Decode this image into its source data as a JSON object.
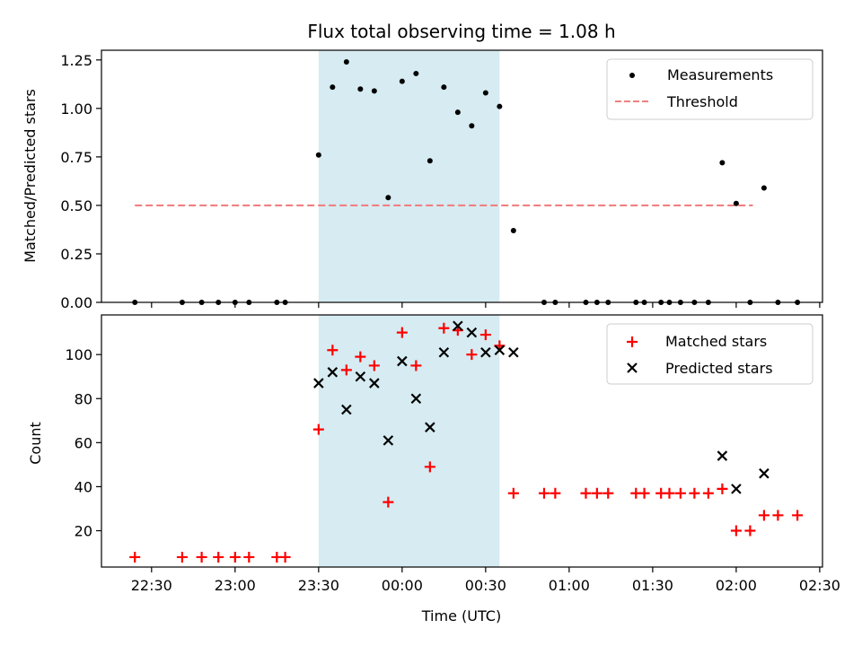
{
  "chart_data": {
    "title": "Flux total observing time = 1.08 h",
    "xlabel": "Time (UTC)",
    "x_tick_labels": [
      "22:30",
      "23:00",
      "23:30",
      "00:00",
      "00:30",
      "01:00",
      "01:30",
      "02:00",
      "02:30"
    ],
    "x_tick_minutes": [
      1350,
      1380,
      1410,
      1440,
      1470,
      1500,
      1530,
      1560,
      1590
    ],
    "xlim_minutes": [
      1332,
      1591
    ],
    "shaded_span_minutes": [
      1410,
      1475
    ],
    "colors": {
      "shade": "#add8e6",
      "threshold": "#f08080",
      "matched": "#ff0000",
      "measure": "#000000",
      "predicted": "#000000"
    },
    "panels": [
      {
        "type": "scatter",
        "ylabel": "Matched/Predicted stars",
        "ylim": [
          0,
          1.3
        ],
        "y_ticks": [
          0.0,
          0.25,
          0.5,
          0.75,
          1.0,
          1.25
        ],
        "y_tick_labels": [
          "0.00",
          "0.25",
          "0.50",
          "0.75",
          "1.00",
          "1.25"
        ],
        "legend": {
          "placement": "top-right",
          "entries": [
            "Measurements",
            "Threshold"
          ]
        },
        "threshold": {
          "name": "Threshold",
          "value": 0.5,
          "x_range_minutes": [
            1344,
            1566
          ]
        },
        "series": [
          {
            "name": "Measurements",
            "marker": "dot",
            "points": [
              [
                1344,
                0.0
              ],
              [
                1361,
                0.0
              ],
              [
                1368,
                0.0
              ],
              [
                1374,
                0.0
              ],
              [
                1380,
                0.0
              ],
              [
                1385,
                0.0
              ],
              [
                1395,
                0.0
              ],
              [
                1398,
                0.0
              ],
              [
                1410,
                0.76
              ],
              [
                1415,
                1.11
              ],
              [
                1420,
                1.24
              ],
              [
                1425,
                1.1
              ],
              [
                1430,
                1.09
              ],
              [
                1435,
                0.54
              ],
              [
                1440,
                1.14
              ],
              [
                1445,
                1.18
              ],
              [
                1450,
                0.73
              ],
              [
                1455,
                1.11
              ],
              [
                1460,
                0.98
              ],
              [
                1465,
                0.91
              ],
              [
                1470,
                1.08
              ],
              [
                1475,
                1.01
              ],
              [
                1480,
                0.37
              ],
              [
                1491,
                0.0
              ],
              [
                1495,
                0.0
              ],
              [
                1506,
                0.0
              ],
              [
                1510,
                0.0
              ],
              [
                1514,
                0.0
              ],
              [
                1524,
                0.0
              ],
              [
                1527,
                0.0
              ],
              [
                1533,
                0.0
              ],
              [
                1536,
                0.0
              ],
              [
                1540,
                0.0
              ],
              [
                1545,
                0.0
              ],
              [
                1550,
                0.0
              ],
              [
                1555,
                0.72
              ],
              [
                1560,
                0.51
              ],
              [
                1565,
                0.0
              ],
              [
                1570,
                0.59
              ],
              [
                1575,
                0.0
              ],
              [
                1582,
                0.0
              ]
            ]
          }
        ]
      },
      {
        "type": "scatter",
        "ylabel": "Count",
        "ylim": [
          3.5,
          118
        ],
        "y_ticks": [
          20,
          40,
          60,
          80,
          100
        ],
        "y_tick_labels": [
          "20",
          "40",
          "60",
          "80",
          "100"
        ],
        "legend": {
          "placement": "top-right",
          "entries": [
            "Matched stars",
            "Predicted stars"
          ]
        },
        "series": [
          {
            "name": "Matched stars",
            "marker": "plus",
            "points": [
              [
                1344,
                8
              ],
              [
                1361,
                8
              ],
              [
                1368,
                8
              ],
              [
                1374,
                8
              ],
              [
                1380,
                8
              ],
              [
                1385,
                8
              ],
              [
                1395,
                8
              ],
              [
                1398,
                8
              ],
              [
                1410,
                66
              ],
              [
                1415,
                102
              ],
              [
                1420,
                93
              ],
              [
                1425,
                99
              ],
              [
                1430,
                95
              ],
              [
                1435,
                33
              ],
              [
                1440,
                110
              ],
              [
                1445,
                95
              ],
              [
                1450,
                49
              ],
              [
                1455,
                112
              ],
              [
                1460,
                111
              ],
              [
                1465,
                100
              ],
              [
                1470,
                109
              ],
              [
                1475,
                104
              ],
              [
                1480,
                37
              ],
              [
                1491,
                37
              ],
              [
                1495,
                37
              ],
              [
                1506,
                37
              ],
              [
                1510,
                37
              ],
              [
                1514,
                37
              ],
              [
                1524,
                37
              ],
              [
                1527,
                37
              ],
              [
                1533,
                37
              ],
              [
                1536,
                37
              ],
              [
                1540,
                37
              ],
              [
                1545,
                37
              ],
              [
                1550,
                37
              ],
              [
                1555,
                39
              ],
              [
                1560,
                20
              ],
              [
                1565,
                20
              ],
              [
                1570,
                27
              ],
              [
                1575,
                27
              ],
              [
                1582,
                27
              ]
            ]
          },
          {
            "name": "Predicted stars",
            "marker": "x",
            "points": [
              [
                1410,
                87
              ],
              [
                1415,
                92
              ],
              [
                1420,
                75
              ],
              [
                1425,
                90
              ],
              [
                1430,
                87
              ],
              [
                1435,
                61
              ],
              [
                1440,
                97
              ],
              [
                1445,
                80
              ],
              [
                1450,
                67
              ],
              [
                1455,
                101
              ],
              [
                1460,
                113
              ],
              [
                1465,
                110
              ],
              [
                1470,
                101
              ],
              [
                1475,
                102
              ],
              [
                1480,
                101
              ],
              [
                1555,
                54
              ],
              [
                1560,
                39
              ],
              [
                1570,
                46
              ]
            ]
          }
        ]
      }
    ]
  }
}
